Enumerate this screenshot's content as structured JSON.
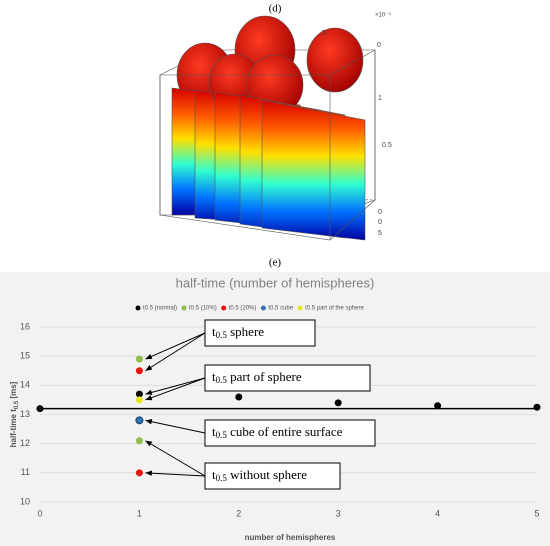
{
  "figure_d": {
    "label": "(d)",
    "axis_labels": [
      "×10⁻⁴",
      "5",
      "0",
      "1",
      "0.5",
      "0",
      "5",
      "0"
    ]
  },
  "chart_data": {
    "type": "scatter",
    "panel_label": "(e)",
    "title": "half-time (number of hemispheres)",
    "x_label": "number of hemispheres",
    "y_label": {
      "text": "half-time t",
      "sub": "0.5",
      "suffix": " [ms]"
    },
    "xlim": [
      0,
      5
    ],
    "xticks": [
      0,
      1,
      2,
      3,
      4,
      5
    ],
    "ylim": [
      10,
      16
    ],
    "yticks": [
      10,
      11,
      12,
      13,
      14,
      15,
      16
    ],
    "grid": true,
    "legend": "top",
    "reference_line": 13.2,
    "series": [
      {
        "name": "t0.5 (normal)",
        "color": "#000000",
        "x": [
          0,
          1,
          2,
          3,
          4,
          5
        ],
        "values": [
          13.2,
          13.7,
          13.6,
          13.4,
          13.3,
          13.25
        ]
      },
      {
        "name": "t0.5 (10%)",
        "color": "#8fbc4b",
        "x": [
          1,
          1
        ],
        "values": [
          14.9,
          12.1
        ]
      },
      {
        "name": "t0.5 (20%)",
        "color": "#e8150c",
        "x": [
          1,
          1
        ],
        "values": [
          14.5,
          11
        ]
      },
      {
        "name": "t0.5 cube",
        "color": "#2e75b6",
        "x": [
          1
        ],
        "values": [
          12.8
        ]
      },
      {
        "name": "t0.5 part of the sphere",
        "color": "#e6e619",
        "x": [
          1
        ],
        "values": [
          13.5
        ]
      }
    ],
    "annotations": [
      {
        "t": "t",
        "sub": "0.5",
        "text": " sphere"
      },
      {
        "t": "t",
        "sub": "0.5",
        "text": " part of sphere"
      },
      {
        "t": "t",
        "sub": "0.5",
        "text": " cube of entire surface"
      },
      {
        "t": "t",
        "sub": "0.5",
        "text": " without sphere"
      }
    ]
  }
}
